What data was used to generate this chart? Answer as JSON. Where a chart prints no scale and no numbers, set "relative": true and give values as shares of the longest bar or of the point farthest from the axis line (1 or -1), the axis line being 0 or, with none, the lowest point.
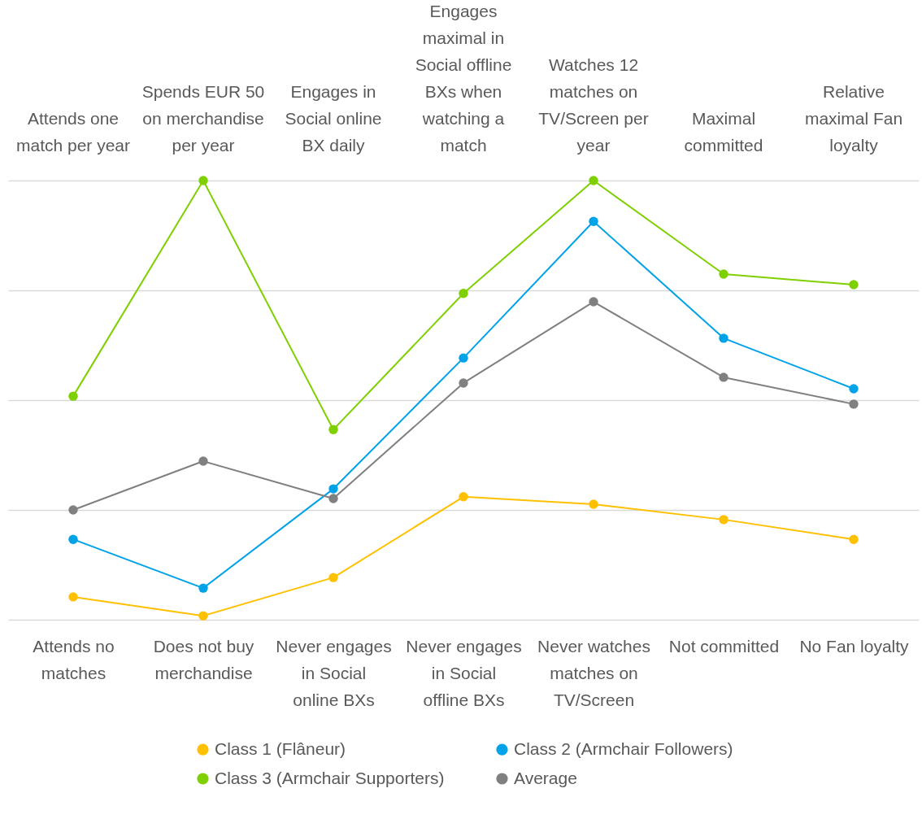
{
  "chart_data": {
    "type": "line",
    "relative": true,
    "grid": "y",
    "legend": "bottom",
    "marker": "circle",
    "line_style": "solid",
    "categories": [
      "Attends no matches",
      "Does not buy merchandise",
      "Never engages in Social online BXs",
      "Never engages in Social offline BXs",
      "Never watches matches on TV/Screen",
      "Not committed",
      "No Fan loyalty"
    ],
    "annotations": [
      "Attends one match per year",
      "Spends EUR 50 on merchandise per year",
      "Engages in Social online BX daily",
      "Engages maximal in Social offline BXs when watching a match",
      "Watches 12 matches on TV/Screen per year",
      "Maximal committed",
      "Relative maximal Fan loyalty"
    ],
    "series": [
      {
        "name": "Class 1 (Flâneur)",
        "color": "#ffc000",
        "values": [
          0.052,
          0.009,
          0.096,
          0.28,
          0.263,
          0.228,
          0.183
        ]
      },
      {
        "name": "Class 2 (Armchair Followers)",
        "color": "#00a2e8",
        "values": [
          0.183,
          0.072,
          0.298,
          0.596,
          0.907,
          0.641,
          0.526
        ]
      },
      {
        "name": "Class 3 (Armchair Supporters)",
        "color": "#7fd000",
        "values": [
          0.509,
          1,
          0.433,
          0.743,
          1,
          0.787,
          0.763
        ]
      },
      {
        "name": "Average",
        "color": "#808080",
        "values": [
          0.25,
          0.361,
          0.276,
          0.539,
          0.724,
          0.552,
          0.491
        ]
      }
    ]
  }
}
